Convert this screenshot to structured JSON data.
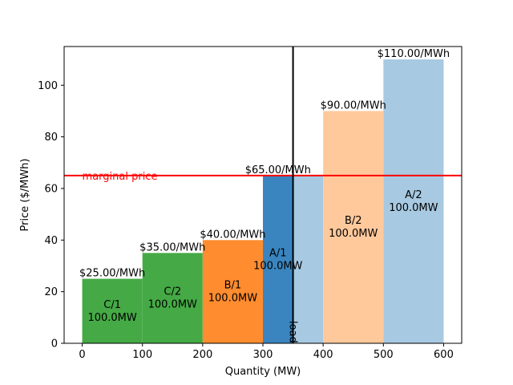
{
  "chart_data": {
    "type": "bar",
    "xlabel": "Quantity (MW)",
    "ylabel": "Price ($/MWh)",
    "xlim": [
      -30,
      630
    ],
    "ylim": [
      0,
      115
    ],
    "xticks": [
      0,
      100,
      200,
      300,
      400,
      500,
      600
    ],
    "yticks": [
      0,
      20,
      40,
      60,
      80,
      100
    ],
    "blocks": [
      {
        "name": "C/1",
        "start": 0,
        "width": 100,
        "price": 25,
        "price_label": "$25.00/MWh",
        "mw_label": "100.0MW",
        "color": "#45aa45"
      },
      {
        "name": "C/2",
        "start": 100,
        "width": 100,
        "price": 35,
        "price_label": "$35.00/MWh",
        "mw_label": "100.0MW",
        "color": "#45aa45"
      },
      {
        "name": "B/1",
        "start": 200,
        "width": 100,
        "price": 40,
        "price_label": "$40.00/MWh",
        "mw_label": "100.0MW",
        "color": "#ff8c2f"
      },
      {
        "name": "A/1",
        "start": 300,
        "width": 50,
        "price": 65,
        "price_label": "$65.00/MWh",
        "mw_label": "100.0MW",
        "color": "#3a85bf"
      },
      {
        "name": "",
        "start": 350,
        "width": 50,
        "price": 65,
        "price_label": "",
        "mw_label": "",
        "color": "#a7c9e1"
      },
      {
        "name": "B/2",
        "start": 400,
        "width": 100,
        "price": 90,
        "price_label": "$90.00/MWh",
        "mw_label": "100.0MW",
        "color": "#ffc99c"
      },
      {
        "name": "A/2",
        "start": 500,
        "width": 100,
        "price": 110,
        "price_label": "$110.00/MWh",
        "mw_label": "100.0MW",
        "color": "#a7c9e1"
      }
    ],
    "marginal_price": {
      "value": 65,
      "label": "marginal price",
      "color": "#ff0000"
    },
    "demand": {
      "value": 350,
      "label": "load",
      "color": "#000000"
    },
    "grid": false
  }
}
